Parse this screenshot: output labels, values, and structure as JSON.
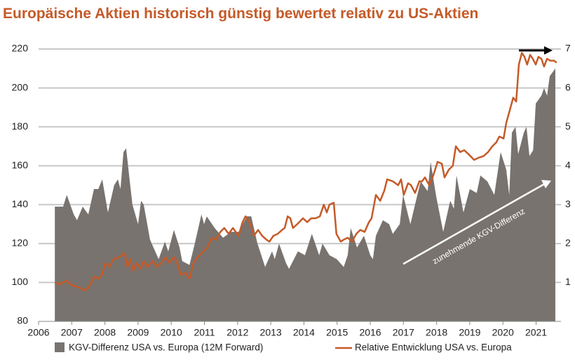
{
  "chart_data": {
    "type": "area_line",
    "title": "Europäische Aktien historisch günstig bewertet relativ zu US-Aktien",
    "annotations": [
      "zunehmende KGV-Differenz"
    ],
    "xlim": [
      2006,
      2021.75
    ],
    "xticks": [
      2006,
      2007,
      2008,
      2009,
      2010,
      2011,
      2012,
      2013,
      2014,
      2015,
      2016,
      2017,
      2018,
      2019,
      2020,
      2021
    ],
    "ylim": [
      80,
      220
    ],
    "yticks": [
      80,
      100,
      120,
      140,
      160,
      180,
      200,
      220
    ],
    "y2lim": [
      0,
      7
    ],
    "y2ticks": [
      1,
      2,
      3,
      4,
      5,
      6,
      7
    ],
    "grid": true,
    "series": [
      {
        "name": "KGV-Differenz USA vs. Europa (12M Forward)",
        "kind": "area",
        "axis": "y2",
        "color": "#78736f",
        "x": [
          2006.49,
          2006.74,
          2006.85,
          2007.06,
          2007.16,
          2007.33,
          2007.5,
          2007.67,
          2007.8,
          2007.92,
          2008.09,
          2008.28,
          2008.39,
          2008.47,
          2008.56,
          2008.64,
          2008.75,
          2008.83,
          2009.0,
          2009.09,
          2009.17,
          2009.36,
          2009.62,
          2009.81,
          2009.91,
          2010.08,
          2010.25,
          2010.33,
          2010.55,
          2010.71,
          2010.91,
          2010.99,
          2011.07,
          2011.31,
          2011.56,
          2011.81,
          2012.03,
          2012.28,
          2012.41,
          2012.6,
          2012.83,
          2013.04,
          2013.12,
          2013.25,
          2013.46,
          2013.55,
          2013.82,
          2014.03,
          2014.24,
          2014.46,
          2014.56,
          2014.77,
          2014.99,
          2015.2,
          2015.32,
          2015.41,
          2015.6,
          2015.81,
          2016.0,
          2016.08,
          2016.17,
          2016.38,
          2016.57,
          2016.68,
          2016.89,
          2016.99,
          2017.21,
          2017.42,
          2017.52,
          2017.73,
          2017.82,
          2017.99,
          2018.2,
          2018.41,
          2018.52,
          2018.6,
          2018.81,
          2019.0,
          2019.21,
          2019.32,
          2019.53,
          2019.74,
          2019.93,
          2020.1,
          2020.19,
          2020.27,
          2020.38,
          2020.46,
          2020.63,
          2020.71,
          2020.8,
          2020.91,
          2020.99,
          2021.16,
          2021.24,
          2021.33,
          2021.41,
          2021.58
        ],
        "values": [
          2.95,
          2.95,
          3.25,
          2.75,
          2.6,
          2.95,
          2.75,
          3.4,
          3.4,
          3.65,
          2.8,
          3.5,
          3.65,
          3.4,
          4.35,
          4.45,
          3.6,
          3.0,
          2.5,
          3.1,
          3.0,
          2.1,
          1.6,
          2.05,
          1.8,
          2.35,
          1.9,
          1.55,
          1.45,
          2.0,
          2.75,
          2.5,
          2.7,
          2.4,
          2.15,
          2.3,
          2.3,
          2.7,
          2.7,
          2.0,
          1.4,
          1.8,
          1.6,
          2.0,
          1.5,
          1.35,
          1.8,
          1.7,
          2.25,
          1.7,
          2.0,
          1.7,
          1.6,
          1.4,
          1.7,
          2.4,
          1.9,
          2.2,
          1.7,
          1.6,
          2.2,
          2.6,
          2.5,
          2.25,
          2.5,
          3.25,
          2.5,
          3.25,
          3.6,
          3.35,
          4.1,
          3.2,
          2.3,
          3.1,
          2.9,
          3.75,
          2.8,
          3.4,
          3.3,
          3.75,
          3.6,
          3.25,
          4.35,
          3.9,
          3.25,
          4.85,
          5.0,
          4.3,
          4.85,
          5.0,
          4.25,
          4.4,
          5.6,
          5.8,
          6.0,
          5.8,
          6.3,
          6.5
        ]
      },
      {
        "name": "Relative Entwicklung USA vs. Europa",
        "kind": "line",
        "axis": "y",
        "color": "#c55a28",
        "x": [
          2006.49,
          2006.63,
          2006.74,
          2006.85,
          2006.95,
          2007.12,
          2007.27,
          2007.37,
          2007.48,
          2007.59,
          2007.67,
          2007.8,
          2007.92,
          2008.01,
          2008.14,
          2008.26,
          2008.43,
          2008.6,
          2008.68,
          2008.77,
          2008.85,
          2008.96,
          2009.07,
          2009.17,
          2009.28,
          2009.45,
          2009.57,
          2009.7,
          2009.83,
          2009.95,
          2010.08,
          2010.16,
          2010.29,
          2010.42,
          2010.55,
          2010.67,
          2010.8,
          2010.97,
          2011.09,
          2011.22,
          2011.35,
          2011.48,
          2011.6,
          2011.73,
          2011.86,
          2012.03,
          2012.15,
          2012.24,
          2012.36,
          2012.49,
          2012.62,
          2012.74,
          2012.87,
          2012.96,
          2013.08,
          2013.21,
          2013.34,
          2013.42,
          2013.51,
          2013.59,
          2013.67,
          2013.8,
          2013.97,
          2014.1,
          2014.22,
          2014.35,
          2014.48,
          2014.6,
          2014.69,
          2014.77,
          2014.9,
          2014.98,
          2015.11,
          2015.2,
          2015.32,
          2015.45,
          2015.58,
          2015.7,
          2015.83,
          2015.96,
          2016.04,
          2016.17,
          2016.3,
          2016.42,
          2016.51,
          2016.68,
          2016.84,
          2016.93,
          2017.01,
          2017.14,
          2017.23,
          2017.35,
          2017.48,
          2017.56,
          2017.65,
          2017.78,
          2017.9,
          2018.03,
          2018.16,
          2018.24,
          2018.37,
          2018.49,
          2018.58,
          2018.71,
          2018.83,
          2018.96,
          2019.13,
          2019.25,
          2019.42,
          2019.55,
          2019.68,
          2019.8,
          2019.89,
          2020.02,
          2020.1,
          2020.23,
          2020.31,
          2020.4,
          2020.48,
          2020.57,
          2020.65,
          2020.73,
          2020.82,
          2020.9,
          2020.99,
          2021.07,
          2021.16,
          2021.24,
          2021.33,
          2021.43,
          2021.54,
          2021.62
        ],
        "values": [
          100,
          99,
          100,
          101,
          99,
          98,
          97,
          96,
          97,
          100,
          103,
          102,
          104,
          110,
          108,
          112,
          113,
          115,
          108,
          112,
          106,
          110,
          107,
          111,
          108,
          111,
          108,
          110,
          113,
          110,
          113,
          111,
          104,
          105,
          102,
          110,
          113,
          116,
          118,
          123,
          122,
          126,
          128,
          125,
          128,
          124,
          131,
          134,
          131,
          124,
          127,
          124,
          122,
          121,
          124,
          125,
          127,
          128,
          134,
          133,
          128,
          130,
          133,
          131,
          133,
          133,
          134,
          140,
          136,
          140,
          141,
          125,
          121,
          122,
          123,
          121,
          125,
          127,
          126,
          131,
          133,
          145,
          142,
          147,
          153,
          152,
          150,
          153,
          145,
          151,
          150,
          146,
          152,
          152,
          154,
          150,
          155,
          162,
          161,
          154,
          158,
          160,
          170,
          167,
          168,
          166,
          163,
          164,
          165,
          167,
          170,
          172,
          175,
          174,
          182,
          190,
          195,
          193,
          212,
          218,
          216,
          212,
          217,
          215,
          212,
          216,
          215,
          211,
          215,
          214,
          214,
          213
        ]
      }
    ]
  }
}
